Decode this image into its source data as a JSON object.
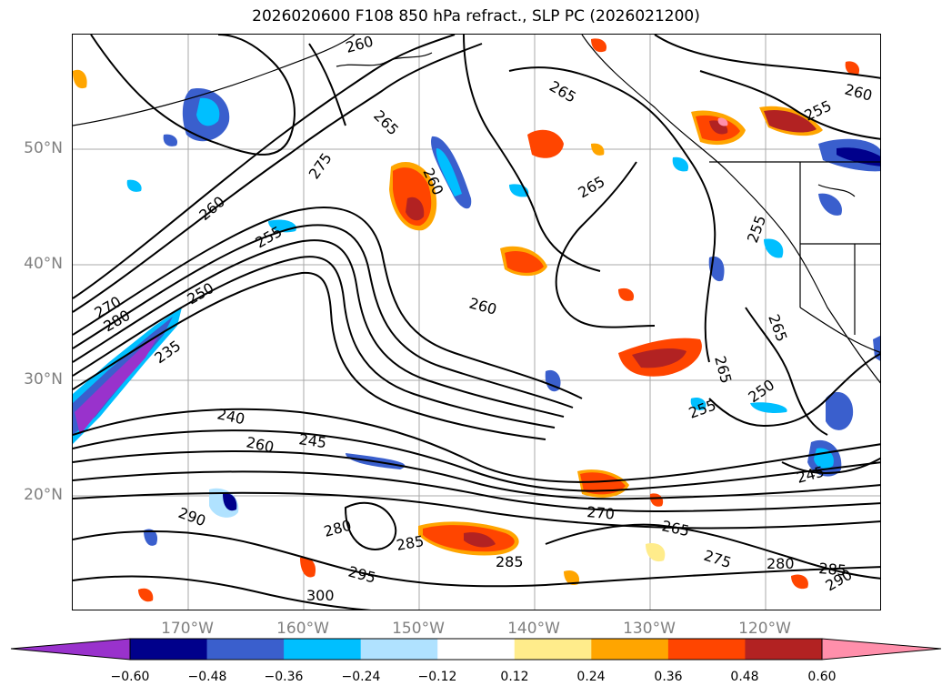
{
  "title": "2026020600 F108 850 hPa refract., SLP PC (2026021200)",
  "map": {
    "lat_labels": [
      "50°N",
      "40°N",
      "30°N",
      "20°N"
    ],
    "lon_labels": [
      "170°W",
      "160°W",
      "150°W",
      "140°W",
      "130°W",
      "120°W"
    ],
    "contour_labels": [
      "260",
      "265",
      "260",
      "275",
      "265",
      "260",
      "265",
      "255",
      "255",
      "260",
      "255",
      "270",
      "280",
      "250",
      "235",
      "260",
      "265",
      "240",
      "260",
      "245",
      "255",
      "250",
      "265",
      "245",
      "290",
      "280",
      "285",
      "270",
      "265",
      "275",
      "280",
      "285",
      "290",
      "295",
      "300",
      "285"
    ]
  },
  "colorbar": {
    "ticks": [
      "−0.60",
      "−0.48",
      "−0.36",
      "−0.24",
      "−0.12",
      "0.12",
      "0.24",
      "0.36",
      "0.48",
      "0.60"
    ],
    "colors": [
      "#9932cc",
      "#00008b",
      "#3a5fcd",
      "#00bfff",
      "#b0e2ff",
      "#ffffff",
      "#ffec8b",
      "#ffa500",
      "#ff4500",
      "#b22222",
      "#ff8fab"
    ]
  }
}
